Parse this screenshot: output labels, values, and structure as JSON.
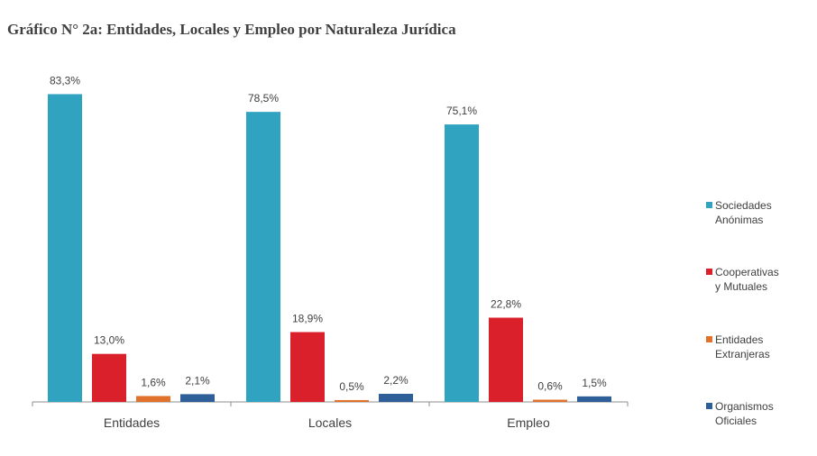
{
  "chart_data": {
    "type": "bar",
    "title": "Gráfico N° 2a: Entidades, Locales y Empleo por Naturaleza Jurídica",
    "categories": [
      "Entidades",
      "Locales",
      "Empleo"
    ],
    "ylim": [
      0,
      100
    ],
    "grid": false,
    "legend_position": "right",
    "series": [
      {
        "name": "Sociedades Anónimas",
        "color": "#2fa3c0",
        "values": [
          83.3,
          78.5,
          75.1
        ],
        "labels": [
          "83,3%",
          "78,5%",
          "75,1%"
        ]
      },
      {
        "name": "Cooperativas y Mutuales",
        "color": "#d9202b",
        "values": [
          13.0,
          18.9,
          22.8
        ],
        "labels": [
          "13,0%",
          "18,9%",
          "22,8%"
        ]
      },
      {
        "name": "Entidades Extranjeras",
        "color": "#e0722b",
        "values": [
          1.6,
          0.5,
          0.6
        ],
        "labels": [
          "1,6%",
          "0,5%",
          "0,6%"
        ]
      },
      {
        "name": "Organismos Oficiales",
        "color": "#2f5f99",
        "values": [
          2.1,
          2.2,
          1.5
        ],
        "labels": [
          "2,1%",
          "2,2%",
          "1,5%"
        ]
      }
    ]
  },
  "legend": [
    {
      "label": "Sociedades\nAnónimas",
      "color": "#2fa3c0"
    },
    {
      "label": "Cooperativas\ny Mutuales",
      "color": "#d9202b"
    },
    {
      "label": "Entidades\nExtranjeras",
      "color": "#e0722b"
    },
    {
      "label": "Organismos\nOficiales",
      "color": "#2f5f99"
    }
  ]
}
